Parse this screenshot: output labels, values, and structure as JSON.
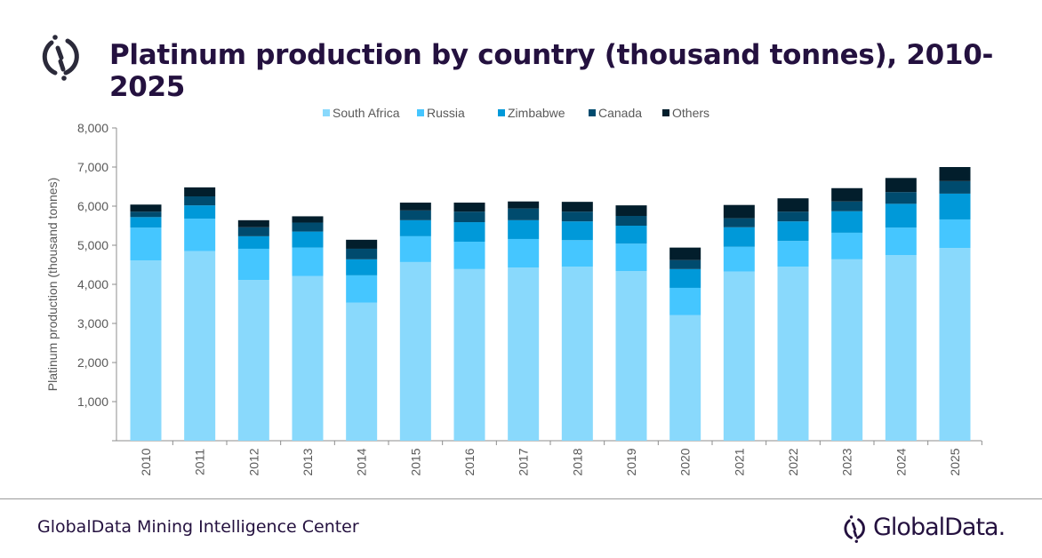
{
  "header": {
    "title": "Platinum production by country (thousand tonnes), 2010-2025"
  },
  "footer": {
    "source": "GlobalData Mining Intelligence Center",
    "brand": "GlobalData."
  },
  "chart_data": {
    "type": "bar",
    "stacked": true,
    "title": "Platinum production by country (thousand tonnes), 2010-2025",
    "xlabel": "",
    "ylabel": "Platinum production (thousand tonnes)",
    "ylim": [
      0,
      8000
    ],
    "yticks": [
      "",
      "1,000",
      "2,000",
      "3,000",
      "4,000",
      "5,000",
      "6,000",
      "7,000",
      "8,000"
    ],
    "grid": false,
    "legend": "top",
    "categories": [
      "2010",
      "2011",
      "2012",
      "2013",
      "2014",
      "2015",
      "2016",
      "2017",
      "2018",
      "2019",
      "2020",
      "2021",
      "2022",
      "2023",
      "2024",
      "2025"
    ],
    "series": [
      {
        "name": "South Africa",
        "color": "#89d9fc",
        "values": [
          4610,
          4850,
          4110,
          4210,
          3530,
          4570,
          4390,
          4430,
          4450,
          4340,
          3210,
          4330,
          4450,
          4640,
          4750,
          4930
        ]
      },
      {
        "name": "Russia",
        "color": "#45c6ff",
        "values": [
          840,
          830,
          800,
          730,
          700,
          660,
          700,
          730,
          680,
          700,
          700,
          630,
          660,
          680,
          700,
          730
        ]
      },
      {
        "name": "Zimbabwe",
        "color": "#0099d9",
        "values": [
          270,
          340,
          320,
          410,
          410,
          410,
          500,
          480,
          480,
          460,
          480,
          500,
          500,
          550,
          610,
          660
        ]
      },
      {
        "name": "Canada",
        "color": "#004b6e",
        "values": [
          140,
          230,
          230,
          230,
          270,
          250,
          270,
          300,
          250,
          250,
          230,
          230,
          250,
          250,
          300,
          320
        ]
      },
      {
        "name": "Others",
        "color": "#021e2c",
        "values": [
          180,
          230,
          180,
          160,
          230,
          200,
          230,
          180,
          250,
          270,
          320,
          340,
          340,
          340,
          360,
          360
        ]
      }
    ]
  }
}
